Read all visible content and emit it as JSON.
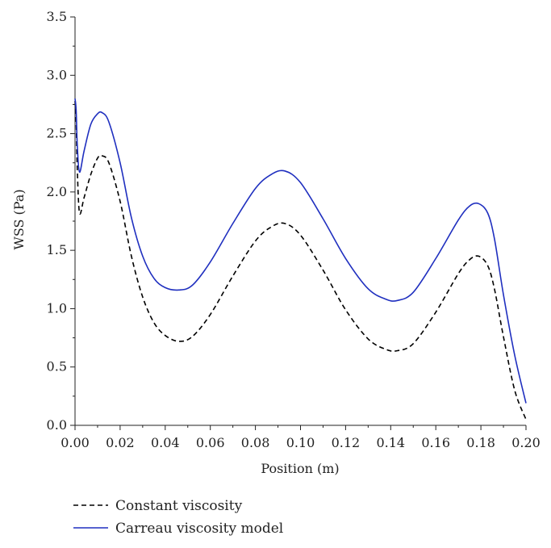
{
  "chart_data": {
    "type": "line",
    "title": "",
    "xlabel": "Position (m)",
    "ylabel": "WSS (Pa)",
    "xlim": [
      0.0,
      0.2
    ],
    "ylim": [
      0.0,
      3.5
    ],
    "x_ticks": [
      "0.00",
      "0.02",
      "0.04",
      "0.06",
      "0.08",
      "0.10",
      "0.12",
      "0.14",
      "0.16",
      "0.18",
      "0.20"
    ],
    "y_ticks": [
      "0.0",
      "0.5",
      "1.0",
      "1.5",
      "2.0",
      "2.5",
      "3.0",
      "3.5"
    ],
    "grid": false,
    "legend_position": "bottom-left",
    "series": [
      {
        "name": "Constant viscosity",
        "style": "dashed",
        "color": "#000000",
        "x": [
          0.0,
          0.0005,
          0.001,
          0.002,
          0.004,
          0.007,
          0.01,
          0.012,
          0.015,
          0.02,
          0.025,
          0.03,
          0.035,
          0.04,
          0.046,
          0.052,
          0.06,
          0.07,
          0.08,
          0.087,
          0.093,
          0.1,
          0.11,
          0.12,
          0.13,
          0.138,
          0.143,
          0.15,
          0.16,
          0.17,
          0.175,
          0.179,
          0.183,
          0.186,
          0.19,
          0.195,
          0.2
        ],
        "y": [
          2.78,
          2.6,
          2.2,
          1.82,
          1.95,
          2.15,
          2.29,
          2.31,
          2.25,
          1.92,
          1.45,
          1.1,
          0.88,
          0.77,
          0.72,
          0.76,
          0.95,
          1.28,
          1.58,
          1.7,
          1.73,
          1.63,
          1.33,
          0.99,
          0.74,
          0.65,
          0.64,
          0.7,
          0.97,
          1.3,
          1.42,
          1.45,
          1.37,
          1.17,
          0.76,
          0.3,
          0.05
        ]
      },
      {
        "name": "Carreau viscosity model",
        "style": "solid",
        "color": "#1f2fbf",
        "x": [
          0.0,
          0.0005,
          0.001,
          0.002,
          0.004,
          0.007,
          0.01,
          0.012,
          0.015,
          0.02,
          0.025,
          0.03,
          0.035,
          0.04,
          0.046,
          0.052,
          0.06,
          0.07,
          0.08,
          0.087,
          0.093,
          0.1,
          0.11,
          0.12,
          0.13,
          0.138,
          0.143,
          0.15,
          0.16,
          0.17,
          0.175,
          0.179,
          0.183,
          0.186,
          0.19,
          0.195,
          0.2
        ],
        "y": [
          2.8,
          2.7,
          2.4,
          2.17,
          2.35,
          2.58,
          2.67,
          2.68,
          2.6,
          2.25,
          1.78,
          1.45,
          1.26,
          1.18,
          1.16,
          1.2,
          1.4,
          1.73,
          2.03,
          2.15,
          2.18,
          2.08,
          1.77,
          1.43,
          1.17,
          1.08,
          1.07,
          1.14,
          1.43,
          1.76,
          1.88,
          1.9,
          1.82,
          1.6,
          1.12,
          0.6,
          0.19
        ]
      }
    ]
  }
}
